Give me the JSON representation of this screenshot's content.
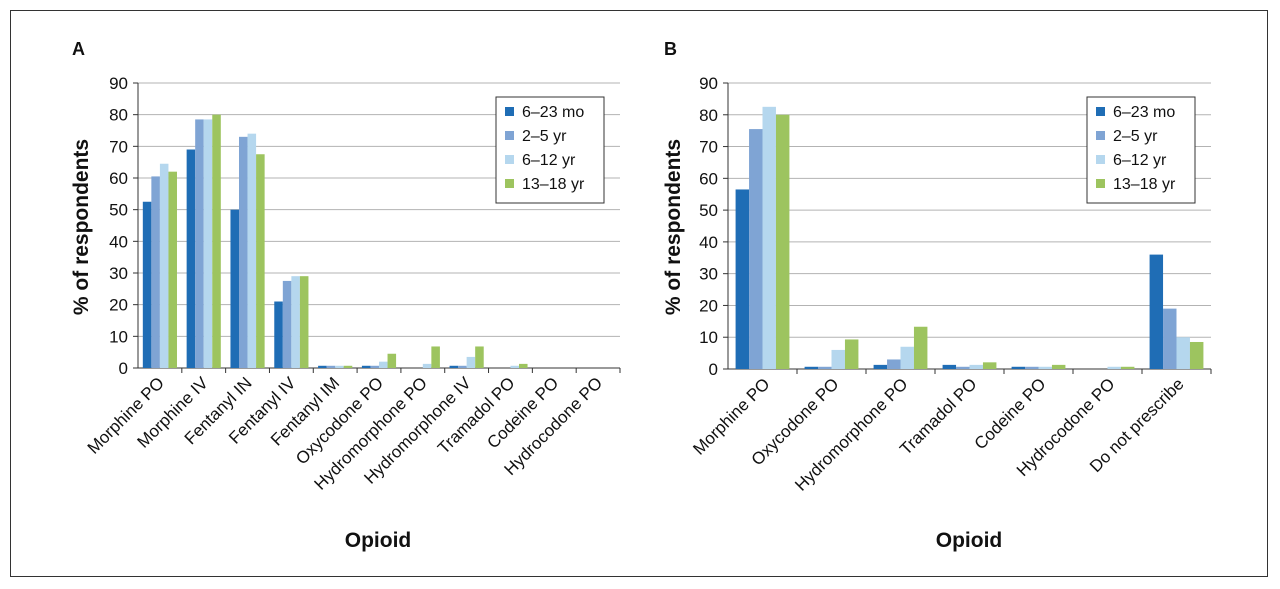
{
  "chart_data": [
    {
      "type": "bar",
      "panel": "A",
      "categories": [
        "Morphine PO",
        "Morphine IV",
        "Fentanyl IN",
        "Fentanyl IV",
        "Fentanyl IM",
        "Oxycodone PO",
        "Hydromorphone PO",
        "Hydromorphone IV",
        "Tramadol PO",
        "Codeine PO",
        "Hydrocodone PO"
      ],
      "series": [
        {
          "name": "6–23 mo",
          "color": "#1f6db5",
          "values": [
            52.5,
            69,
            50,
            21,
            0.7,
            0.7,
            0,
            0.7,
            0,
            0,
            0
          ]
        },
        {
          "name": "2–5 yr",
          "color": "#7fa4d4",
          "values": [
            60.5,
            78.5,
            73,
            27.5,
            0.7,
            0.7,
            0,
            0.7,
            0,
            0,
            0
          ]
        },
        {
          "name": "6–12 yr",
          "color": "#b5d7ee",
          "values": [
            64.5,
            78.5,
            74,
            29,
            0.7,
            2,
            1.3,
            3.5,
            0.7,
            0,
            0
          ]
        },
        {
          "name": "13–18 yr",
          "color": "#9dc45f",
          "values": [
            62,
            80,
            67.5,
            29,
            0.7,
            4.5,
            6.8,
            6.8,
            1.3,
            0,
            0
          ]
        }
      ],
      "xlabel": "Opioid",
      "ylabel": "% of respondents",
      "ylim": [
        0,
        90
      ],
      "yticks": [
        0,
        10,
        20,
        30,
        40,
        50,
        60,
        70,
        80,
        90
      ],
      "grid": true,
      "legend": "top-right"
    },
    {
      "type": "bar",
      "panel": "B",
      "categories": [
        "Morphine PO",
        "Oxycodone PO",
        "Hydromorphone PO",
        "Tramadol PO",
        "Codeine PO",
        "Hydrocodone PO",
        "Do not prescribe"
      ],
      "series": [
        {
          "name": "6–23 mo",
          "color": "#1f6db5",
          "values": [
            56.5,
            0.7,
            1.3,
            1.3,
            0.7,
            0,
            36
          ]
        },
        {
          "name": "2–5 yr",
          "color": "#7fa4d4",
          "values": [
            75.5,
            0.7,
            3,
            0.7,
            0.7,
            0,
            19
          ]
        },
        {
          "name": "6–12 yr",
          "color": "#b5d7ee",
          "values": [
            82.5,
            6,
            7,
            1.3,
            0.7,
            0.7,
            10
          ]
        },
        {
          "name": "13–18 yr",
          "color": "#9dc45f",
          "values": [
            80,
            9.3,
            13.3,
            2.1,
            1.3,
            0.7,
            8.5
          ]
        }
      ],
      "xlabel": "Opioid",
      "ylabel": "% of respondents",
      "ylim": [
        0,
        90
      ],
      "yticks": [
        0,
        10,
        20,
        30,
        40,
        50,
        60,
        70,
        80,
        90
      ],
      "grid": true,
      "legend": "top-right"
    }
  ]
}
